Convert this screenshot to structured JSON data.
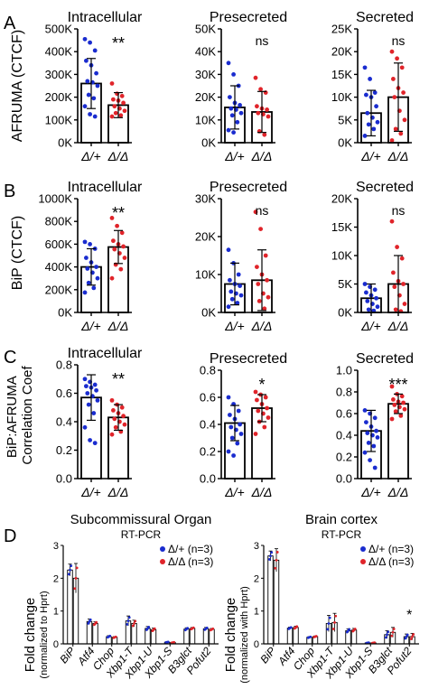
{
  "panels": [
    {
      "letter": "A",
      "ylabel": "AFRUMA (CTCF)"
    },
    {
      "letter": "B",
      "ylabel": "BiP (CTCF)"
    },
    {
      "letter": "C",
      "ylabel": "BiP:AFRUMA\nCorrelation Coef"
    },
    {
      "letter": "D",
      "ylabel": ""
    }
  ],
  "colors": {
    "het": "#1a2ccf",
    "hom": "#e0242a",
    "axis": "#000000",
    "bar": "#ffffff",
    "errorbar": "#000000"
  },
  "chart_data": [
    {
      "type": "bar",
      "id": "A1",
      "title": "Intracellular",
      "categories": [
        "Δ/+",
        "Δ/Δ"
      ],
      "ylim": [
        0,
        500000
      ],
      "yticks": [
        "0K",
        "100K",
        "200K",
        "300K",
        "400K",
        "500K"
      ],
      "ytick_values": [
        0,
        100000,
        200000,
        300000,
        400000,
        500000
      ],
      "values": [
        260000,
        165000
      ],
      "sd": [
        110000,
        55000
      ],
      "significance": "**",
      "points": [
        [
          455000,
          440000,
          405000,
          360000,
          340000,
          305000,
          270000,
          265000,
          250000,
          210000,
          195000,
          160000,
          125000,
          115000
        ],
        [
          260000,
          215000,
          205000,
          190000,
          185000,
          175000,
          160000,
          150000,
          140000,
          130000,
          120000,
          115000
        ]
      ]
    },
    {
      "type": "bar",
      "id": "A2",
      "title": "Presecreted",
      "categories": [
        "Δ/+",
        "Δ/Δ"
      ],
      "ylim": [
        0,
        50000
      ],
      "yticks": [
        "0K",
        "10K",
        "20K",
        "30K",
        "40K",
        "50K"
      ],
      "ytick_values": [
        0,
        10000,
        20000,
        30000,
        40000,
        50000
      ],
      "values": [
        15500,
        13500
      ],
      "sd": [
        9500,
        9000
      ],
      "significance": "ns",
      "points": [
        [
          35000,
          30000,
          25000,
          20000,
          17500,
          16500,
          15000,
          14500,
          13000,
          12000,
          9000,
          5500,
          4500
        ],
        [
          28500,
          23500,
          22000,
          16000,
          15000,
          14500,
          13000,
          12500,
          11500,
          5000,
          3500
        ]
      ]
    },
    {
      "type": "bar",
      "id": "A3",
      "title": "Secreted",
      "categories": [
        "Δ/+",
        "Δ/Δ"
      ],
      "ylim": [
        0,
        25000
      ],
      "yticks": [
        "0K",
        "5K",
        "10K",
        "15K",
        "20K",
        "25K"
      ],
      "ytick_values": [
        0,
        5000,
        10000,
        15000,
        20000,
        25000
      ],
      "values": [
        6500,
        10000
      ],
      "sd": [
        5000,
        7500
      ],
      "significance": "ns",
      "points": [
        [
          16500,
          14000,
          11000,
          10500,
          10000,
          8000,
          6500,
          5500,
          4500,
          4000,
          3000,
          1500
        ],
        [
          20000,
          18500,
          16500,
          14000,
          12000,
          11000,
          10000,
          7000,
          5000,
          3000,
          2000,
          500
        ]
      ]
    },
    {
      "type": "bar",
      "id": "B1",
      "title": "Intracellular",
      "categories": [
        "Δ/+",
        "Δ/Δ"
      ],
      "ylim": [
        0,
        1000000
      ],
      "yticks": [
        "0K",
        "200K",
        "400K",
        "600K",
        "800K",
        "1000K"
      ],
      "ytick_values": [
        0,
        200000,
        400000,
        600000,
        800000,
        1000000
      ],
      "values": [
        400000,
        575000
      ],
      "sd": [
        160000,
        145000
      ],
      "significance": "**",
      "points": [
        [
          620000,
          600000,
          560000,
          480000,
          440000,
          400000,
          385000,
          350000,
          300000,
          260000,
          215000,
          175000
        ],
        [
          830000,
          760000,
          700000,
          630000,
          600000,
          580000,
          555000,
          520000,
          480000,
          420000,
          380000,
          300000
        ]
      ]
    },
    {
      "type": "bar",
      "id": "B2",
      "title": "Presecreted",
      "categories": [
        "Δ/+",
        "Δ/Δ"
      ],
      "ylim": [
        0,
        30000
      ],
      "yticks": [
        "0K",
        "10K",
        "20K",
        "30K"
      ],
      "ytick_values": [
        0,
        10000,
        20000,
        30000
      ],
      "values": [
        7500,
        8500
      ],
      "sd": [
        5500,
        8000
      ],
      "significance": "ns",
      "points": [
        [
          16500,
          13000,
          10000,
          8500,
          7500,
          7000,
          5500,
          5000,
          4500,
          3500,
          2500,
          1500
        ],
        [
          26500,
          22000,
          15000,
          12000,
          10000,
          8500,
          7500,
          5000,
          4000,
          3000,
          1000
        ]
      ]
    },
    {
      "type": "bar",
      "id": "B3",
      "title": "Secreted",
      "categories": [
        "Δ/+",
        "Δ/Δ"
      ],
      "ylim": [
        0,
        20000
      ],
      "yticks": [
        "0K",
        "5K",
        "10K",
        "15K",
        "20K"
      ],
      "ytick_values": [
        0,
        5000,
        10000,
        15000,
        20000
      ],
      "values": [
        2500,
        5000
      ],
      "sd": [
        2500,
        5000
      ],
      "significance": "ns",
      "points": [
        [
          5000,
          4500,
          4000,
          3500,
          3000,
          2500,
          2000,
          1500,
          1000,
          500,
          300
        ],
        [
          16000,
          11500,
          9500,
          7000,
          5500,
          5000,
          4500,
          3000,
          1500,
          500,
          200
        ]
      ]
    },
    {
      "type": "bar",
      "id": "C1",
      "title": "Intracellular",
      "categories": [
        "Δ/+",
        "Δ/Δ"
      ],
      "ylim": [
        0,
        0.8
      ],
      "yticks": [
        "0.0",
        "0.2",
        "0.4",
        "0.6",
        "0.8"
      ],
      "ytick_values": [
        0,
        0.2,
        0.4,
        0.6,
        0.8
      ],
      "values": [
        0.57,
        0.43
      ],
      "sd": [
        0.16,
        0.09
      ],
      "significance": "**",
      "points": [
        [
          0.7,
          0.68,
          0.66,
          0.65,
          0.64,
          0.62,
          0.6,
          0.58,
          0.55,
          0.52,
          0.46,
          0.36,
          0.27,
          0.25
        ],
        [
          0.55,
          0.52,
          0.5,
          0.48,
          0.46,
          0.44,
          0.42,
          0.4,
          0.38,
          0.36,
          0.33,
          0.31
        ]
      ]
    },
    {
      "type": "bar",
      "id": "C2",
      "title": "Presecreted",
      "categories": [
        "Δ/+",
        "Δ/Δ"
      ],
      "ylim": [
        0,
        0.8
      ],
      "yticks": [
        "0.0",
        "0.2",
        "0.4",
        "0.6",
        "0.8"
      ],
      "ytick_values": [
        0,
        0.2,
        0.4,
        0.6,
        0.8
      ],
      "values": [
        0.41,
        0.52
      ],
      "sd": [
        0.13,
        0.1
      ],
      "significance": "*",
      "points": [
        [
          0.6,
          0.55,
          0.5,
          0.47,
          0.44,
          0.4,
          0.38,
          0.36,
          0.33,
          0.3,
          0.26,
          0.2,
          0.17
        ],
        [
          0.64,
          0.62,
          0.6,
          0.58,
          0.55,
          0.52,
          0.5,
          0.48,
          0.45,
          0.42,
          0.38,
          0.33
        ]
      ]
    },
    {
      "type": "bar",
      "id": "C3",
      "title": "Secreted",
      "categories": [
        "Δ/+",
        "Δ/Δ"
      ],
      "ylim": [
        0,
        1.0
      ],
      "yticks": [
        "0.0",
        "0.2",
        "0.4",
        "0.6",
        "0.8",
        "1.0"
      ],
      "ytick_values": [
        0,
        0.2,
        0.4,
        0.6,
        0.8,
        1.0
      ],
      "values": [
        0.44,
        0.69
      ],
      "sd": [
        0.19,
        0.09
      ],
      "significance": "***",
      "points": [
        [
          0.63,
          0.6,
          0.56,
          0.52,
          0.48,
          0.44,
          0.42,
          0.4,
          0.38,
          0.33,
          0.3,
          0.24,
          0.17,
          0.1
        ],
        [
          0.85,
          0.78,
          0.76,
          0.73,
          0.71,
          0.7,
          0.68,
          0.66,
          0.64,
          0.62,
          0.58,
          0.55
        ]
      ]
    },
    {
      "type": "bar",
      "id": "D1",
      "title": "Subcommissural Organ",
      "subtitle": "RT-PCR",
      "ylabel": "Fold change",
      "ylabel2": "(normalized to Hprt)",
      "ylim": [
        0,
        3
      ],
      "yticks": [
        "0",
        "1",
        "2",
        "3"
      ],
      "ytick_values": [
        0,
        1,
        2,
        3
      ],
      "categories": [
        "BiP",
        "Atf4",
        "Chop",
        "Xbp1-T",
        "Xbp1-U",
        "Xbp1-S",
        "B3glct",
        "Pofut2"
      ],
      "series": [
        {
          "name": "Δ/+ (n=3)",
          "values": [
            2.25,
            0.68,
            0.22,
            0.7,
            0.47,
            0.05,
            0.45,
            0.46
          ],
          "sd": [
            0.18,
            0.08,
            0.03,
            0.15,
            0.06,
            0.01,
            0.04,
            0.04
          ]
        },
        {
          "name": "Δ/Δ (n=3)",
          "values": [
            2.0,
            0.62,
            0.2,
            0.62,
            0.43,
            0.04,
            0.47,
            0.44
          ],
          "sd": [
            0.45,
            0.05,
            0.02,
            0.1,
            0.05,
            0.01,
            0.03,
            0.03
          ]
        }
      ],
      "significance": [
        "",
        "",
        "",
        "",
        "",
        "",
        "",
        ""
      ]
    },
    {
      "type": "bar",
      "id": "D2",
      "title": "Brain cortex",
      "subtitle": "RT-PCR",
      "ylabel": "Fold change",
      "ylabel2": "(normalized with Hprt)",
      "ylim": [
        0,
        3
      ],
      "yticks": [
        "0",
        "1",
        "2",
        "3"
      ],
      "ytick_values": [
        0,
        1,
        2,
        3
      ],
      "categories": [
        "BiP",
        "Atf4",
        "Chop",
        "Xbp1-T",
        "Xbp1-U",
        "Xbp1-S",
        "B3glct",
        "Pofut2"
      ],
      "series": [
        {
          "name": "Δ/+ (n=3)",
          "values": [
            2.68,
            0.48,
            0.2,
            0.62,
            0.4,
            0.03,
            0.28,
            0.22
          ],
          "sd": [
            0.15,
            0.03,
            0.02,
            0.25,
            0.06,
            0.01,
            0.12,
            0.08
          ]
        },
        {
          "name": "Δ/Δ (n=3)",
          "values": [
            2.55,
            0.5,
            0.22,
            0.65,
            0.42,
            0.03,
            0.35,
            0.22
          ],
          "sd": [
            0.35,
            0.04,
            0.02,
            0.28,
            0.05,
            0.01,
            0.15,
            0.1
          ]
        }
      ],
      "significance": [
        "",
        "",
        "",
        "",
        "",
        "",
        "",
        "*"
      ]
    }
  ]
}
